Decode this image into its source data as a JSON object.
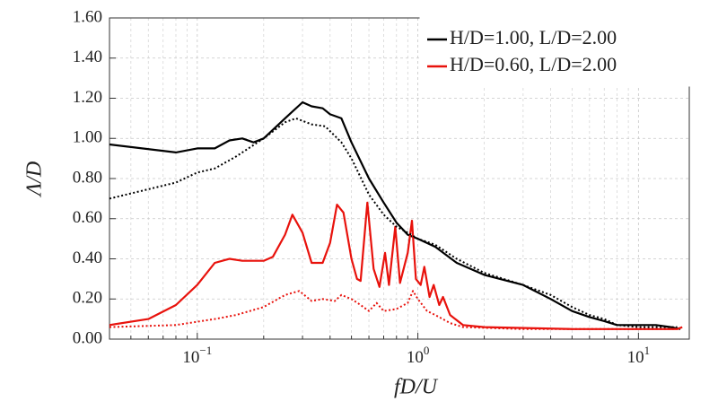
{
  "chart_data": {
    "type": "line",
    "xlabel": "fD/U",
    "ylabel": "Λ/D",
    "xscale": "log",
    "xlim": [
      0.04,
      17
    ],
    "ylim": [
      0,
      1.6
    ],
    "xticks": [
      {
        "value": 0.1,
        "label": "10",
        "exponent": "−1"
      },
      {
        "value": 1,
        "label": "10",
        "exponent": "0"
      },
      {
        "value": 10,
        "label": "10",
        "exponent": "1"
      }
    ],
    "xminorticks": [
      0.05,
      0.06,
      0.07,
      0.08,
      0.09,
      0.2,
      0.3,
      0.4,
      0.5,
      0.6,
      0.7,
      0.8,
      0.9,
      2,
      3,
      4,
      5,
      6,
      7,
      8,
      9
    ],
    "yticks": [
      {
        "value": 0,
        "label": "0.00"
      },
      {
        "value": 0.2,
        "label": "0.20"
      },
      {
        "value": 0.4,
        "label": "0.40"
      },
      {
        "value": 0.6,
        "label": "0.60"
      },
      {
        "value": 0.8,
        "label": "0.80"
      },
      {
        "value": 1.0,
        "label": "1.00"
      },
      {
        "value": 1.2,
        "label": "1.20"
      },
      {
        "value": 1.4,
        "label": "1.40"
      },
      {
        "value": 1.6,
        "label": "1.60"
      }
    ],
    "grid": true,
    "legend": "upper right",
    "series": [
      {
        "name": "H/D=1.00, L/D=2.00",
        "color": "#000000",
        "dash": "solid",
        "x": [
          0.04,
          0.08,
          0.1,
          0.12,
          0.14,
          0.16,
          0.18,
          0.2,
          0.25,
          0.3,
          0.33,
          0.37,
          0.4,
          0.45,
          0.5,
          0.6,
          0.7,
          0.8,
          0.9,
          1.0,
          1.2,
          1.5,
          2,
          3,
          4,
          5,
          6,
          7,
          8,
          10,
          12,
          14,
          15.5
        ],
        "values": [
          0.97,
          0.93,
          0.95,
          0.95,
          0.99,
          1.0,
          0.98,
          1.0,
          1.1,
          1.18,
          1.16,
          1.15,
          1.12,
          1.1,
          0.98,
          0.8,
          0.68,
          0.58,
          0.52,
          0.5,
          0.46,
          0.38,
          0.32,
          0.27,
          0.2,
          0.14,
          0.11,
          0.09,
          0.07,
          0.07,
          0.07,
          0.06,
          0.05
        ]
      },
      {
        "name": "H/D=0.60, L/D=2.00",
        "color": "#e8120c",
        "dash": "solid",
        "x": [
          0.04,
          0.06,
          0.08,
          0.1,
          0.12,
          0.14,
          0.16,
          0.18,
          0.2,
          0.22,
          0.25,
          0.27,
          0.3,
          0.33,
          0.37,
          0.4,
          0.43,
          0.46,
          0.5,
          0.53,
          0.55,
          0.59,
          0.63,
          0.67,
          0.71,
          0.74,
          0.79,
          0.83,
          0.9,
          0.94,
          0.98,
          1.03,
          1.07,
          1.13,
          1.18,
          1.25,
          1.3,
          1.4,
          1.6,
          2,
          5,
          10,
          15,
          15.8
        ],
        "values": [
          0.07,
          0.1,
          0.17,
          0.27,
          0.38,
          0.4,
          0.39,
          0.39,
          0.39,
          0.41,
          0.52,
          0.62,
          0.53,
          0.38,
          0.38,
          0.48,
          0.67,
          0.63,
          0.4,
          0.3,
          0.29,
          0.68,
          0.35,
          0.26,
          0.43,
          0.27,
          0.56,
          0.28,
          0.43,
          0.59,
          0.3,
          0.27,
          0.36,
          0.21,
          0.27,
          0.17,
          0.21,
          0.12,
          0.07,
          0.06,
          0.05,
          0.05,
          0.05,
          0.06
        ]
      },
      {
        "color": "#000000",
        "dash": "dotted",
        "x": [
          0.04,
          0.08,
          0.1,
          0.12,
          0.15,
          0.2,
          0.25,
          0.28,
          0.33,
          0.38,
          0.45,
          0.5,
          0.6,
          0.7,
          0.8,
          0.9,
          1.0,
          1.2,
          1.5,
          2,
          3,
          4,
          5,
          6,
          7,
          8,
          10,
          15
        ],
        "values": [
          0.7,
          0.78,
          0.83,
          0.85,
          0.91,
          1.0,
          1.08,
          1.1,
          1.07,
          1.06,
          0.98,
          0.9,
          0.72,
          0.62,
          0.56,
          0.53,
          0.5,
          0.47,
          0.4,
          0.33,
          0.27,
          0.22,
          0.16,
          0.12,
          0.1,
          0.07,
          0.06,
          0.06
        ]
      },
      {
        "color": "#e8120c",
        "dash": "dotted",
        "x": [
          0.04,
          0.08,
          0.12,
          0.15,
          0.2,
          0.25,
          0.29,
          0.33,
          0.37,
          0.42,
          0.45,
          0.5,
          0.55,
          0.6,
          0.65,
          0.7,
          0.8,
          0.9,
          0.95,
          1.0,
          1.1,
          1.2,
          1.4,
          1.6,
          3,
          10,
          15
        ],
        "values": [
          0.06,
          0.07,
          0.1,
          0.12,
          0.16,
          0.22,
          0.24,
          0.19,
          0.2,
          0.19,
          0.22,
          0.2,
          0.17,
          0.14,
          0.18,
          0.14,
          0.15,
          0.18,
          0.24,
          0.2,
          0.14,
          0.12,
          0.08,
          0.06,
          0.05,
          0.05,
          0.05
        ]
      }
    ]
  }
}
